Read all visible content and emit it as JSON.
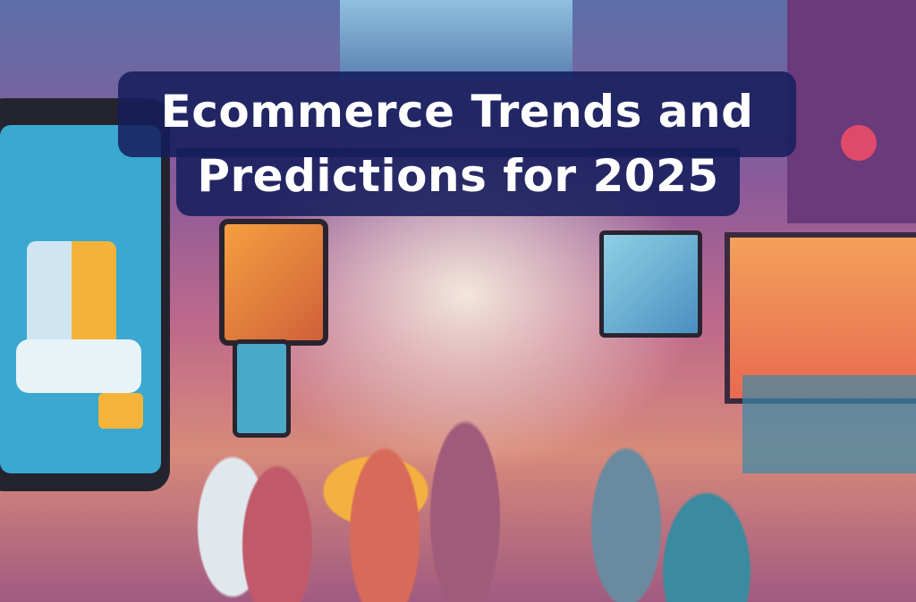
{
  "hero": {
    "title_line1": "Ecommerce Trends and",
    "title_line2": "Predictions for 2025",
    "title_box_color": "#161e5c",
    "title_text_color": "#ffffff"
  }
}
